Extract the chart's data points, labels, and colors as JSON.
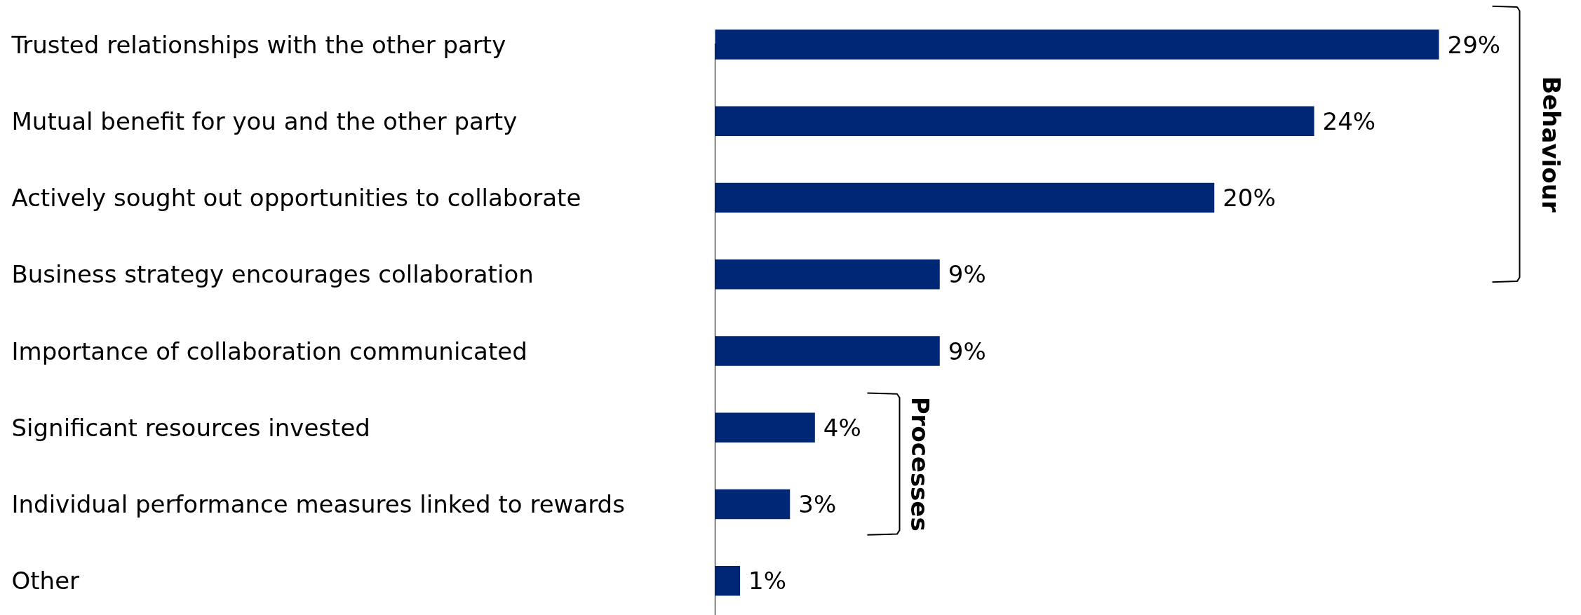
{
  "chart_data": {
    "type": "bar",
    "orientation": "horizontal",
    "categories": [
      "Trusted relationships with the other party",
      "Mutual benefit for you and the other party",
      "Actively sought out opportunities to collaborate",
      "Business strategy encourages collaboration",
      "Importance of collaboration communicated",
      "Significant resources invested",
      "Individual performance measures linked to rewards",
      "Other"
    ],
    "values": [
      29,
      24,
      20,
      9,
      9,
      4,
      3,
      1
    ],
    "value_labels": [
      "29%",
      "24%",
      "20%",
      "9%",
      "9%",
      "4%",
      "3%",
      "1%"
    ],
    "color": "#002776",
    "annotations": [
      "Behaviour",
      "Processes"
    ],
    "grid": false
  }
}
